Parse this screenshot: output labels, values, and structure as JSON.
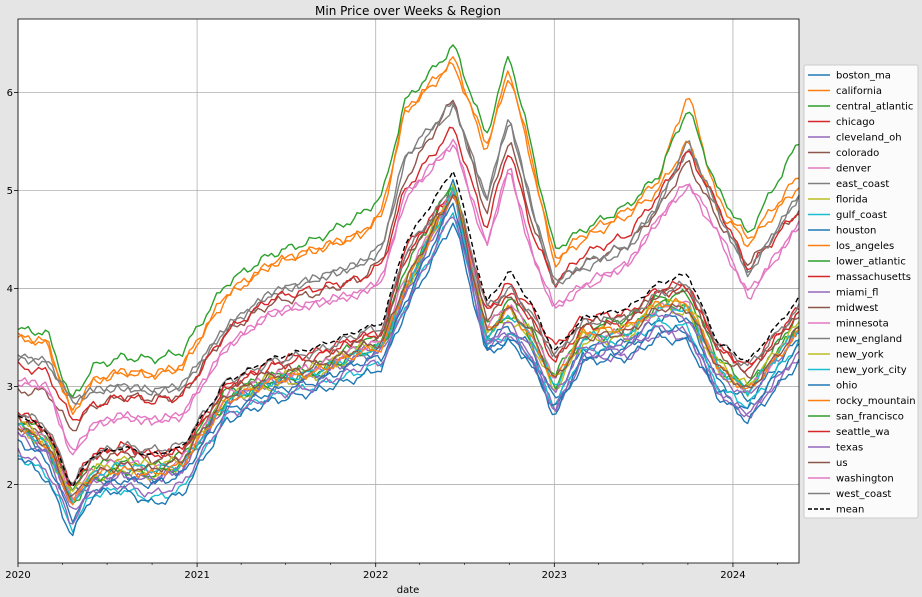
{
  "chart_data": {
    "type": "line",
    "title": "Min Price over Weeks & Region",
    "xlabel": "date",
    "ylabel": "",
    "x_ticks": [
      "2020",
      "2021",
      "2022",
      "2023",
      "2024"
    ],
    "y_ticks": [
      2,
      3,
      4,
      5,
      6
    ],
    "xlim": [
      "2020-01-01",
      "2024-05-15"
    ],
    "ylim": [
      1.2,
      6.75
    ],
    "grid": true,
    "legend": "right-outside",
    "x_dates": [
      "2020-01-01",
      "2020-03-01",
      "2020-04-20",
      "2020-06-01",
      "2020-08-01",
      "2020-10-01",
      "2020-12-01",
      "2021-03-01",
      "2021-06-01",
      "2021-09-01",
      "2021-12-01",
      "2022-01-15",
      "2022-03-01",
      "2022-06-10",
      "2022-08-15",
      "2022-10-01",
      "2022-11-15",
      "2023-01-01",
      "2023-03-01",
      "2023-06-01",
      "2023-08-01",
      "2023-10-01",
      "2023-12-01",
      "2024-02-01",
      "2024-05-15"
    ],
    "series": [
      {
        "name": "boston_ma",
        "color": "#1f77b4",
        "dashed": false,
        "values": [
          2.62,
          2.3,
          1.92,
          2.02,
          2.1,
          2.05,
          2.15,
          2.85,
          3.05,
          3.1,
          3.3,
          3.4,
          3.9,
          5.1,
          3.5,
          3.6,
          3.4,
          2.85,
          3.4,
          3.45,
          3.7,
          3.7,
          3.05,
          2.85,
          3.5
        ]
      },
      {
        "name": "california",
        "color": "#ff7f0e",
        "dashed": false,
        "values": [
          3.5,
          3.45,
          2.72,
          3.05,
          3.15,
          3.12,
          3.2,
          3.9,
          4.25,
          4.4,
          4.55,
          4.75,
          5.8,
          6.3,
          5.4,
          6.2,
          5.3,
          4.25,
          4.5,
          4.75,
          5.0,
          5.5,
          4.8,
          4.45,
          5.05
        ]
      },
      {
        "name": "central_atlantic",
        "color": "#2ca02c",
        "dashed": false,
        "values": [
          2.7,
          2.5,
          1.95,
          2.2,
          2.25,
          2.18,
          2.3,
          2.95,
          3.1,
          3.2,
          3.45,
          3.5,
          4.2,
          5.1,
          3.6,
          3.9,
          3.6,
          3.1,
          3.6,
          3.7,
          3.9,
          3.95,
          3.3,
          3.0,
          3.75
        ]
      },
      {
        "name": "chicago",
        "color": "#d62728",
        "dashed": false,
        "values": [
          2.75,
          2.55,
          1.95,
          2.3,
          2.4,
          2.3,
          2.35,
          3.0,
          3.25,
          3.35,
          3.5,
          3.55,
          4.4,
          5.0,
          3.8,
          4.05,
          3.8,
          3.4,
          3.7,
          3.75,
          4.0,
          4.05,
          3.4,
          3.2,
          3.8
        ]
      },
      {
        "name": "cleveland_oh",
        "color": "#9467bd",
        "dashed": false,
        "values": [
          2.5,
          2.3,
          1.7,
          2.0,
          2.1,
          2.05,
          2.15,
          2.8,
          3.0,
          3.1,
          3.3,
          3.35,
          3.9,
          4.95,
          3.4,
          3.55,
          3.3,
          2.75,
          3.3,
          3.3,
          3.55,
          3.5,
          2.95,
          2.7,
          3.3
        ]
      },
      {
        "name": "colorado",
        "color": "#8c564b",
        "dashed": false,
        "values": [
          2.95,
          2.95,
          2.55,
          2.8,
          2.9,
          2.88,
          2.9,
          3.55,
          3.85,
          3.95,
          4.1,
          4.3,
          5.1,
          5.95,
          4.75,
          5.55,
          4.7,
          4.05,
          4.25,
          4.45,
          4.8,
          5.3,
          4.7,
          4.25,
          4.8
        ]
      },
      {
        "name": "denver",
        "color": "#e377c2",
        "dashed": false,
        "values": [
          3.05,
          3.0,
          2.3,
          2.6,
          2.7,
          2.65,
          2.7,
          3.4,
          3.75,
          3.85,
          3.95,
          4.1,
          4.9,
          5.5,
          4.4,
          5.25,
          4.35,
          3.8,
          4.0,
          4.25,
          4.7,
          5.1,
          4.6,
          3.95,
          4.65
        ]
      },
      {
        "name": "east_coast",
        "color": "#7f7f7f",
        "dashed": false,
        "values": [
          3.3,
          3.25,
          2.85,
          2.95,
          3.0,
          2.95,
          3.0,
          3.6,
          3.95,
          4.1,
          4.25,
          4.4,
          5.3,
          5.85,
          4.9,
          5.75,
          4.85,
          4.05,
          4.2,
          4.4,
          4.85,
          5.45,
          4.8,
          4.15,
          4.95
        ]
      },
      {
        "name": "florida",
        "color": "#bcbd22",
        "dashed": false,
        "values": [
          2.6,
          2.35,
          1.85,
          2.05,
          2.15,
          2.08,
          2.2,
          2.85,
          3.0,
          3.1,
          3.35,
          3.4,
          3.95,
          5.0,
          3.5,
          3.7,
          3.45,
          2.95,
          3.45,
          3.5,
          3.8,
          3.75,
          3.15,
          2.95,
          3.6
        ]
      },
      {
        "name": "gulf_coast",
        "color": "#17becf",
        "dashed": false,
        "values": [
          2.3,
          2.1,
          1.55,
          1.9,
          1.95,
          1.85,
          1.95,
          2.7,
          2.9,
          3.0,
          3.15,
          3.25,
          3.8,
          4.8,
          3.4,
          3.55,
          3.3,
          2.8,
          3.35,
          3.45,
          3.65,
          3.6,
          3.0,
          2.8,
          3.45
        ]
      },
      {
        "name": "houston",
        "color": "#1f77b4",
        "dashed": false,
        "values": [
          2.3,
          2.05,
          1.48,
          1.9,
          1.95,
          1.8,
          1.9,
          2.65,
          2.85,
          2.95,
          3.1,
          3.2,
          3.75,
          4.7,
          3.35,
          3.45,
          3.25,
          2.75,
          3.3,
          3.4,
          3.6,
          3.55,
          2.95,
          2.75,
          3.4
        ]
      },
      {
        "name": "los_angeles",
        "color": "#ff7f0e",
        "dashed": false,
        "values": [
          3.5,
          3.45,
          2.72,
          3.05,
          3.15,
          3.12,
          3.2,
          3.95,
          4.25,
          4.4,
          4.55,
          4.8,
          5.8,
          6.35,
          5.45,
          6.25,
          5.35,
          4.3,
          4.55,
          4.8,
          5.1,
          6.0,
          4.9,
          4.5,
          5.15
        ]
      },
      {
        "name": "lower_atlantic",
        "color": "#2ca02c",
        "dashed": false,
        "values": [
          2.65,
          2.4,
          1.8,
          2.05,
          2.15,
          2.1,
          2.2,
          2.85,
          3.05,
          3.15,
          3.35,
          3.4,
          4.0,
          5.05,
          3.5,
          3.75,
          3.5,
          3.0,
          3.5,
          3.55,
          3.85,
          3.8,
          3.2,
          2.95,
          3.65
        ]
      },
      {
        "name": "massachusetts",
        "color": "#d62728",
        "dashed": false,
        "values": [
          2.7,
          2.55,
          2.0,
          2.3,
          2.35,
          2.3,
          2.35,
          3.0,
          3.2,
          3.3,
          3.5,
          3.55,
          4.3,
          5.0,
          3.75,
          3.95,
          3.7,
          3.25,
          3.6,
          3.65,
          3.95,
          4.0,
          3.4,
          3.15,
          3.75
        ]
      },
      {
        "name": "miami_fl",
        "color": "#9467bd",
        "dashed": false,
        "values": [
          2.55,
          2.35,
          1.8,
          2.05,
          2.1,
          2.05,
          2.15,
          2.85,
          3.05,
          3.15,
          3.35,
          3.4,
          3.95,
          5.0,
          3.45,
          3.65,
          3.4,
          2.9,
          3.4,
          3.45,
          3.75,
          3.7,
          3.1,
          2.9,
          3.55
        ]
      },
      {
        "name": "midwest",
        "color": "#8c564b",
        "dashed": false,
        "values": [
          2.7,
          2.5,
          1.95,
          2.25,
          2.35,
          2.25,
          2.3,
          2.95,
          3.15,
          3.25,
          3.45,
          3.5,
          4.3,
          5.0,
          3.7,
          3.95,
          3.7,
          3.3,
          3.65,
          3.7,
          3.95,
          4.0,
          3.35,
          3.1,
          3.75
        ]
      },
      {
        "name": "minnesota",
        "color": "#e377c2",
        "dashed": false,
        "values": [
          2.6,
          2.45,
          1.85,
          2.15,
          2.25,
          2.15,
          2.25,
          2.9,
          3.1,
          3.2,
          3.4,
          3.45,
          4.1,
          5.0,
          3.6,
          3.85,
          3.55,
          3.1,
          3.5,
          3.55,
          3.8,
          3.85,
          3.2,
          2.95,
          3.6
        ]
      },
      {
        "name": "new_england",
        "color": "#7f7f7f",
        "dashed": false,
        "values": [
          2.75,
          2.6,
          2.0,
          2.3,
          2.4,
          2.35,
          2.4,
          3.05,
          3.25,
          3.35,
          3.55,
          3.6,
          4.35,
          5.05,
          3.8,
          4.0,
          3.75,
          3.3,
          3.65,
          3.7,
          3.95,
          4.05,
          3.45,
          3.2,
          3.8
        ]
      },
      {
        "name": "new_york",
        "color": "#bcbd22",
        "dashed": false,
        "values": [
          2.65,
          2.45,
          1.9,
          2.15,
          2.25,
          2.2,
          2.25,
          2.9,
          3.1,
          3.2,
          3.4,
          3.45,
          4.05,
          5.05,
          3.55,
          3.8,
          3.55,
          3.05,
          3.55,
          3.6,
          3.85,
          3.85,
          3.25,
          3.0,
          3.65
        ]
      },
      {
        "name": "new_york_city",
        "color": "#17becf",
        "dashed": false,
        "values": [
          2.6,
          2.4,
          1.8,
          2.1,
          2.2,
          2.15,
          2.2,
          2.85,
          3.05,
          3.15,
          3.35,
          3.4,
          4.0,
          5.0,
          3.5,
          3.75,
          3.5,
          3.0,
          3.5,
          3.55,
          3.8,
          3.8,
          3.2,
          2.95,
          3.6
        ]
      },
      {
        "name": "ohio",
        "color": "#1f77b4",
        "dashed": false,
        "values": [
          2.45,
          2.25,
          1.65,
          1.95,
          2.05,
          2.0,
          2.1,
          2.75,
          2.95,
          3.05,
          3.25,
          3.3,
          3.85,
          4.9,
          3.35,
          3.5,
          3.25,
          2.7,
          3.25,
          3.3,
          3.5,
          3.45,
          2.9,
          2.65,
          3.25
        ]
      },
      {
        "name": "rocky_mountain",
        "color": "#ff7f0e",
        "dashed": false,
        "values": [
          2.6,
          2.4,
          1.8,
          2.1,
          2.15,
          2.1,
          2.2,
          2.85,
          3.05,
          3.15,
          3.35,
          3.4,
          4.0,
          5.0,
          3.55,
          3.8,
          3.5,
          3.05,
          3.55,
          3.6,
          3.85,
          3.85,
          3.2,
          2.95,
          3.55
        ]
      },
      {
        "name": "san_francisco",
        "color": "#2ca02c",
        "dashed": false,
        "values": [
          3.58,
          3.55,
          2.85,
          3.2,
          3.3,
          3.28,
          3.35,
          4.05,
          4.35,
          4.5,
          4.75,
          4.95,
          5.9,
          6.48,
          5.55,
          6.4,
          5.45,
          4.4,
          4.6,
          4.85,
          5.15,
          5.85,
          5.0,
          4.55,
          5.5
        ]
      },
      {
        "name": "seattle_wa",
        "color": "#d62728",
        "dashed": false,
        "values": [
          3.2,
          3.15,
          2.65,
          2.8,
          2.9,
          2.85,
          2.9,
          3.55,
          3.9,
          4.0,
          4.1,
          4.25,
          5.0,
          5.65,
          4.6,
          5.45,
          4.6,
          4.05,
          4.35,
          4.55,
          4.95,
          5.4,
          4.85,
          4.2,
          4.8
        ]
      },
      {
        "name": "texas",
        "color": "#9467bd",
        "dashed": false,
        "values": [
          2.35,
          2.15,
          1.6,
          1.95,
          2.0,
          1.9,
          2.0,
          2.7,
          2.9,
          3.0,
          3.2,
          3.25,
          3.8,
          4.8,
          3.4,
          3.55,
          3.3,
          2.75,
          3.3,
          3.4,
          3.6,
          3.55,
          2.95,
          2.7,
          3.35
        ]
      },
      {
        "name": "us",
        "color": "#8c564b",
        "dashed": false,
        "values": [
          2.6,
          2.4,
          1.85,
          2.1,
          2.2,
          2.15,
          2.25,
          2.9,
          3.1,
          3.2,
          3.4,
          3.45,
          4.05,
          5.0,
          3.55,
          3.8,
          3.55,
          3.05,
          3.5,
          3.55,
          3.8,
          3.8,
          3.2,
          2.95,
          3.6
        ]
      },
      {
        "name": "washington",
        "color": "#e377c2",
        "dashed": false,
        "values": [
          3.05,
          3.0,
          2.3,
          2.6,
          2.7,
          2.65,
          2.7,
          3.4,
          3.75,
          3.85,
          3.95,
          4.1,
          4.95,
          5.5,
          4.45,
          5.25,
          4.4,
          3.8,
          4.05,
          4.25,
          4.7,
          5.05,
          4.55,
          3.9,
          4.65
        ]
      },
      {
        "name": "west_coast",
        "color": "#7f7f7f",
        "dashed": false,
        "values": [
          3.3,
          3.25,
          2.85,
          2.95,
          3.0,
          2.95,
          3.0,
          3.6,
          3.95,
          4.1,
          4.25,
          4.45,
          5.35,
          5.9,
          4.9,
          5.75,
          4.85,
          4.05,
          4.25,
          4.45,
          4.85,
          5.5,
          4.8,
          4.15,
          4.95
        ]
      },
      {
        "name": "mean",
        "color": "#000000",
        "dashed": true,
        "values": [
          2.72,
          2.55,
          1.98,
          2.3,
          2.38,
          2.3,
          2.38,
          3.05,
          3.28,
          3.4,
          3.58,
          3.65,
          4.45,
          5.22,
          3.85,
          4.18,
          3.85,
          3.35,
          3.7,
          3.8,
          4.05,
          4.15,
          3.45,
          3.25,
          3.9
        ]
      }
    ]
  }
}
